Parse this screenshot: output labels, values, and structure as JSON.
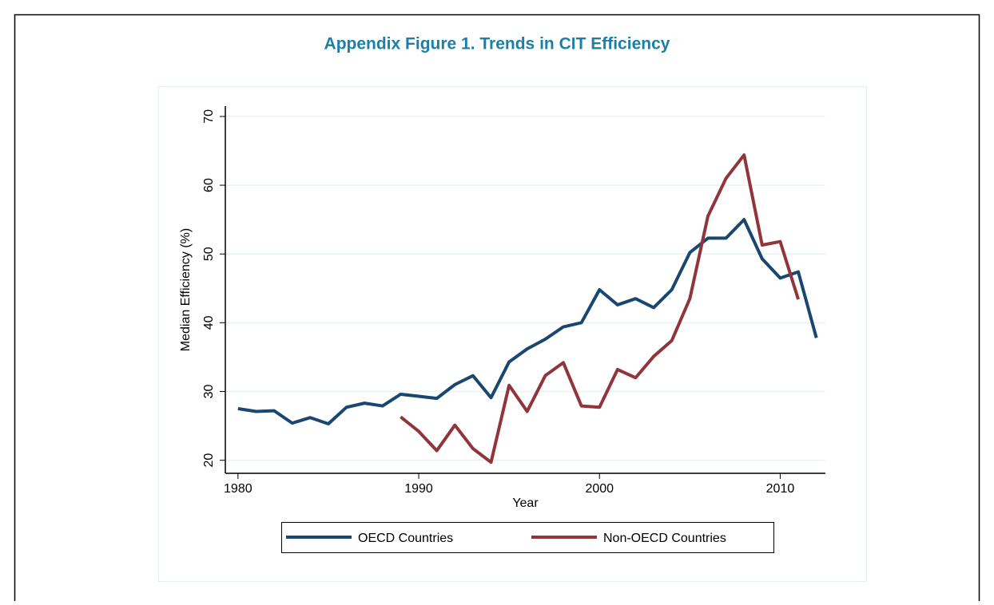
{
  "chart_data": {
    "type": "line",
    "title": "Appendix Figure 1. Trends in CIT Efficiency",
    "x_label": "Year",
    "y_label": "Median Efficiency (%)",
    "x": [
      1980,
      1981,
      1982,
      1983,
      1984,
      1985,
      1986,
      1987,
      1988,
      1989,
      1990,
      1991,
      1992,
      1993,
      1994,
      1995,
      1996,
      1997,
      1998,
      1999,
      2000,
      2001,
      2002,
      2003,
      2004,
      2005,
      2006,
      2007,
      2008,
      2009,
      2010,
      2011,
      2012
    ],
    "series": [
      {
        "name": "OECD Countries",
        "color": "#1a476f",
        "values": [
          27.5,
          27.1,
          27.2,
          25.4,
          26.2,
          25.3,
          27.7,
          28.3,
          27.9,
          29.6,
          29.3,
          29.0,
          31.0,
          32.3,
          29.1,
          34.3,
          36.2,
          37.6,
          39.4,
          40.0,
          44.8,
          42.6,
          43.5,
          42.2,
          44.8,
          50.2,
          52.3,
          52.3,
          55.0,
          49.3,
          46.5,
          47.4,
          37.8
        ]
      },
      {
        "name": "Non-OECD Countries",
        "color": "#90353b",
        "values": [
          null,
          null,
          null,
          null,
          null,
          null,
          null,
          null,
          null,
          26.3,
          24.2,
          21.4,
          25.1,
          21.7,
          19.7,
          30.9,
          27.1,
          32.3,
          34.2,
          27.9,
          27.7,
          33.2,
          32.0,
          35.1,
          37.4,
          43.5,
          55.5,
          61.0,
          64.4,
          51.3,
          51.8,
          43.4,
          null
        ]
      }
    ],
    "xlim": [
      1979.3,
      2012.5
    ],
    "xticks": [
      1980,
      1990,
      2000,
      2010
    ],
    "ylim": [
      18.1,
      71.5
    ],
    "yticks": [
      20,
      30,
      40,
      50,
      60,
      70
    ],
    "grid": true,
    "legend": "bottom"
  }
}
